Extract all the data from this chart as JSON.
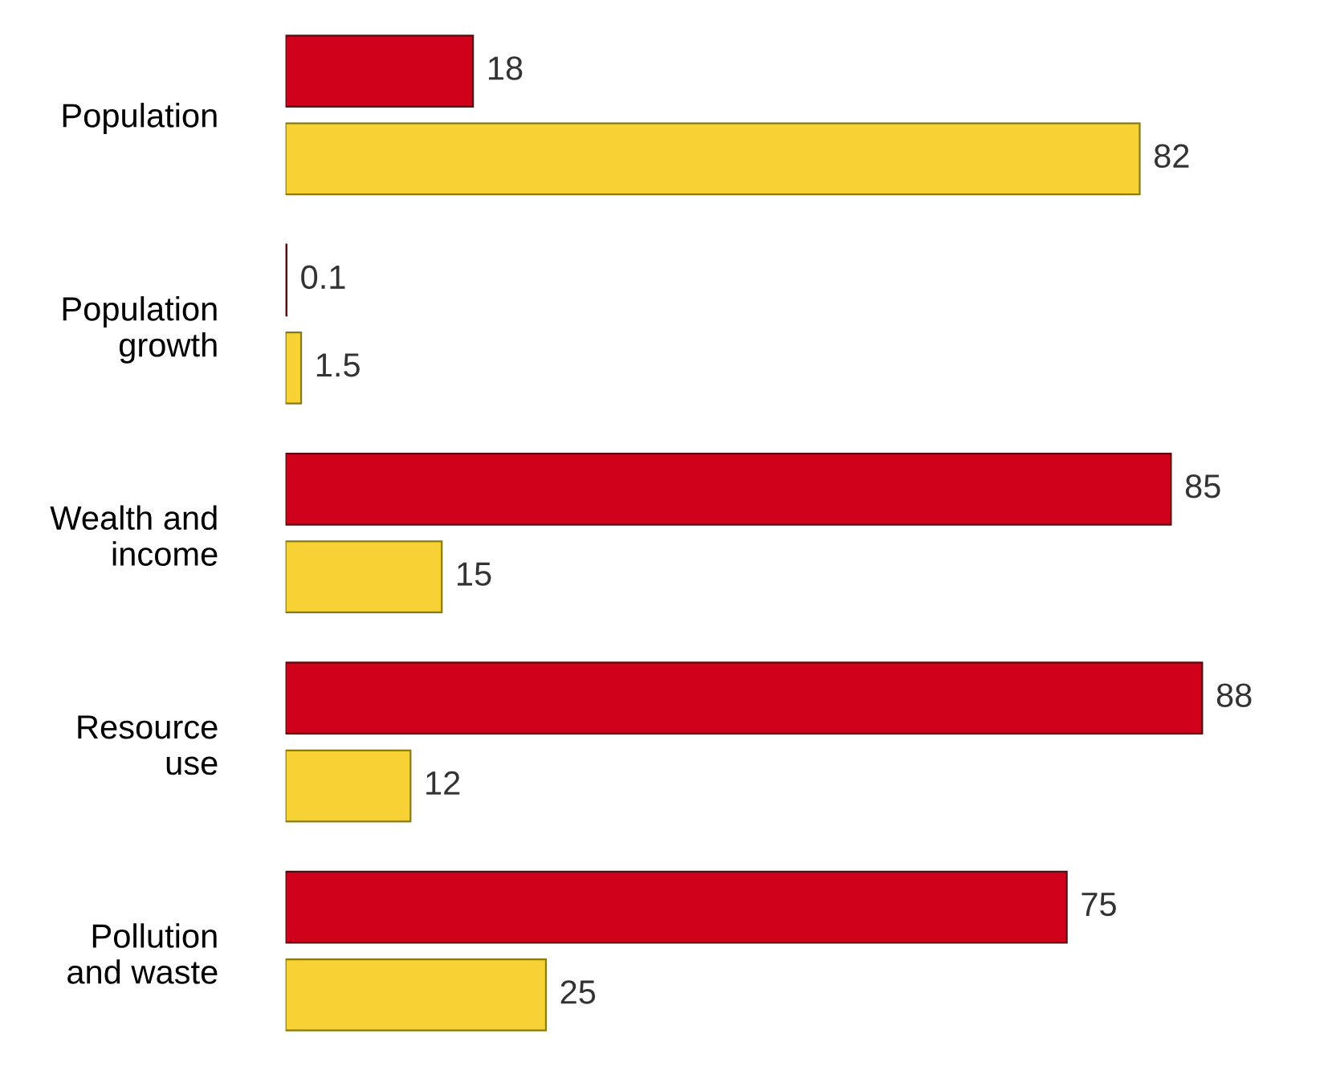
{
  "chart_data": {
    "type": "bar",
    "orientation": "horizontal",
    "categories": [
      "Population",
      "Population\ngrowth",
      "Wealth and\nincome",
      "Resource\nuse",
      "Pollution\nand waste"
    ],
    "series": [
      {
        "color": "#d0021b",
        "values": [
          18,
          0.1,
          85,
          88,
          75
        ]
      },
      {
        "color": "#f7d234",
        "values": [
          82,
          1.5,
          15,
          12,
          25
        ]
      }
    ],
    "data_labels": true,
    "tick_labels": "y"
  }
}
